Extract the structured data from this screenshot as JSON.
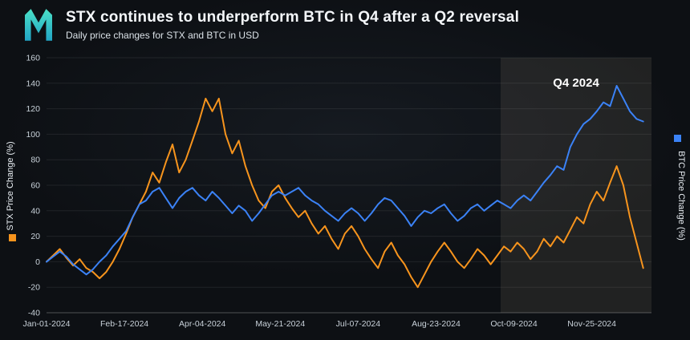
{
  "colors": {
    "background": "#0d1014",
    "stx": "#f7941d",
    "btc": "#3b82f6",
    "grid": "rgba(255,255,255,0.08)",
    "axis_line": "rgba(255,255,255,0.28)",
    "axis_text": "#c9d2da",
    "axis_title_text": "#e9eef3",
    "highlight_fill": "rgba(216,200,170,0.10)",
    "annotation_text": "#ffffff",
    "logo_teal_top": "#4be0c6",
    "logo_teal_bottom": "#22a6c6"
  },
  "chart_data": {
    "type": "line",
    "title": "STX continues to underperform BTC in Q4 after a Q2 reversal",
    "subtitle": "Daily price changes for STX and BTC in USD",
    "left_axis_label": "STX Price Change (%)",
    "right_axis_label": "BTC Price Change (%)",
    "ylim": [
      -40,
      160
    ],
    "y_tick_step": 20,
    "x_domain_days": [
      0,
      365
    ],
    "x_unit": "day-of-year-2024",
    "grid": "horizontal",
    "x_ticks": [
      {
        "day": 0,
        "label": "Jan-01-2024"
      },
      {
        "day": 47,
        "label": "Feb-17-2024"
      },
      {
        "day": 94,
        "label": "Apr-04-2024"
      },
      {
        "day": 141,
        "label": "May-21-2024"
      },
      {
        "day": 188,
        "label": "Jul-07-2024"
      },
      {
        "day": 235,
        "label": "Aug-23-2024"
      },
      {
        "day": 282,
        "label": "Oct-09-2024"
      },
      {
        "day": 329,
        "label": "Nov-25-2024"
      }
    ],
    "annotation": {
      "label": "Q4 2024",
      "start_day": 274,
      "end_day": 365
    },
    "x": [
      0,
      4,
      8,
      12,
      16,
      20,
      24,
      28,
      32,
      36,
      40,
      44,
      48,
      52,
      56,
      60,
      64,
      68,
      72,
      76,
      80,
      84,
      88,
      92,
      96,
      100,
      104,
      108,
      112,
      116,
      120,
      124,
      128,
      132,
      136,
      140,
      144,
      148,
      152,
      156,
      160,
      164,
      168,
      172,
      176,
      180,
      184,
      188,
      192,
      196,
      200,
      204,
      208,
      212,
      216,
      220,
      224,
      228,
      232,
      236,
      240,
      244,
      248,
      252,
      256,
      260,
      264,
      268,
      272,
      276,
      280,
      284,
      288,
      292,
      296,
      300,
      304,
      308,
      312,
      316,
      320,
      324,
      328,
      332,
      336,
      340,
      344,
      348,
      352,
      356,
      360
    ],
    "series": [
      {
        "name": "STX",
        "axis": "left",
        "color_key": "stx",
        "values": [
          0,
          5,
          10,
          3,
          -3,
          2,
          -5,
          -8,
          -13,
          -8,
          0,
          10,
          22,
          35,
          45,
          55,
          70,
          62,
          78,
          92,
          70,
          80,
          95,
          110,
          128,
          118,
          128,
          100,
          85,
          95,
          75,
          60,
          48,
          42,
          55,
          60,
          50,
          42,
          35,
          40,
          30,
          22,
          28,
          18,
          10,
          22,
          28,
          20,
          10,
          2,
          -5,
          8,
          15,
          5,
          -2,
          -12,
          -20,
          -10,
          0,
          8,
          15,
          8,
          0,
          -5,
          2,
          10,
          5,
          -2,
          5,
          12,
          8,
          15,
          10,
          2,
          8,
          18,
          12,
          20,
          15,
          25,
          35,
          30,
          45,
          55,
          48,
          62,
          75,
          60,
          35,
          15,
          -5
        ]
      },
      {
        "name": "BTC",
        "axis": "right",
        "color_key": "btc",
        "values": [
          0,
          4,
          8,
          4,
          -2,
          -6,
          -10,
          -6,
          0,
          5,
          12,
          18,
          24,
          35,
          45,
          48,
          55,
          58,
          50,
          42,
          50,
          55,
          58,
          52,
          48,
          55,
          50,
          44,
          38,
          44,
          40,
          32,
          38,
          45,
          52,
          55,
          52,
          55,
          58,
          52,
          48,
          45,
          40,
          36,
          32,
          38,
          42,
          38,
          32,
          38,
          45,
          50,
          48,
          42,
          36,
          28,
          35,
          40,
          38,
          42,
          45,
          38,
          32,
          36,
          42,
          45,
          40,
          44,
          48,
          45,
          42,
          48,
          52,
          48,
          55,
          62,
          68,
          75,
          72,
          90,
          100,
          108,
          112,
          118,
          125,
          122,
          138,
          128,
          118,
          112,
          110
        ]
      }
    ]
  }
}
